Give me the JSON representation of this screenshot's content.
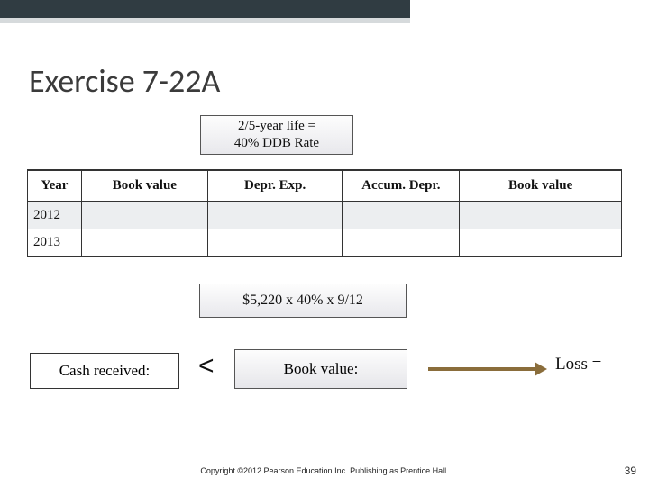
{
  "title": "Exercise 7-22A",
  "callout_top_line1": "2/5-year life =",
  "callout_top_line2": "40% DDB Rate",
  "table": {
    "headers": {
      "year": "Year",
      "bv1": "Book value",
      "de": "Depr.  Exp.",
      "ad": "Accum. Depr.",
      "bv2": "Book value"
    },
    "rows": {
      "r0_year": "2012",
      "r1_year": "2013"
    }
  },
  "callout_mid": "$5,220 x 40% x 9/12",
  "cash_label": "Cash received:",
  "lt": "<",
  "bv_label": "Book value:",
  "loss_label": "Loss  =",
  "copyright": "Copyright ©2012 Pearson Education Inc. Publishing as Prentice Hall.",
  "page_number": "39",
  "colors": {
    "top_dark": "#303c42",
    "top_light": "#d6dadc",
    "arrow": "#8a6d3b"
  }
}
